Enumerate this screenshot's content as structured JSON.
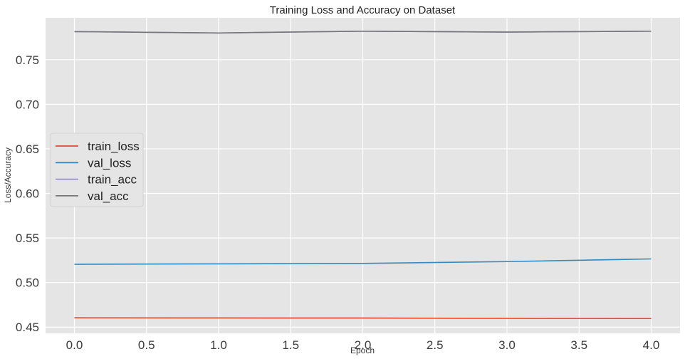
{
  "chart_data": {
    "type": "line",
    "title": "Training Loss and Accuracy on Dataset",
    "xlabel": "Epoch",
    "ylabel": "Loss/Accuracy",
    "x": [
      0,
      1,
      2,
      3,
      4
    ],
    "xlim": [
      -0.2,
      4.2
    ],
    "ylim": [
      0.443,
      0.797
    ],
    "xticks": [
      0.0,
      0.5,
      1.0,
      1.5,
      2.0,
      2.5,
      3.0,
      3.5,
      4.0
    ],
    "yticks": [
      0.45,
      0.5,
      0.55,
      0.6,
      0.65,
      0.7,
      0.75
    ],
    "xtick_labels": [
      "0.0",
      "0.5",
      "1.0",
      "1.5",
      "2.0",
      "2.5",
      "3.0",
      "3.5",
      "4.0"
    ],
    "ytick_labels": [
      "0.45",
      "0.50",
      "0.55",
      "0.60",
      "0.65",
      "0.70",
      "0.75"
    ],
    "grid": true,
    "legend_position": "center-left",
    "series": [
      {
        "name": "train_loss",
        "color": "#E24A33",
        "values": [
          0.4605,
          0.4603,
          0.4602,
          0.4598,
          0.4596
        ]
      },
      {
        "name": "val_loss",
        "color": "#348ABD",
        "values": [
          0.5205,
          0.521,
          0.5215,
          0.5235,
          0.5265
        ]
      },
      {
        "name": "train_acc",
        "color": "#988ED5",
        "values": [
          0.7815,
          0.78,
          0.782,
          0.781,
          0.782
        ]
      },
      {
        "name": "val_acc",
        "color": "#777777",
        "values": [
          0.7815,
          0.78,
          0.782,
          0.781,
          0.782
        ]
      }
    ]
  }
}
